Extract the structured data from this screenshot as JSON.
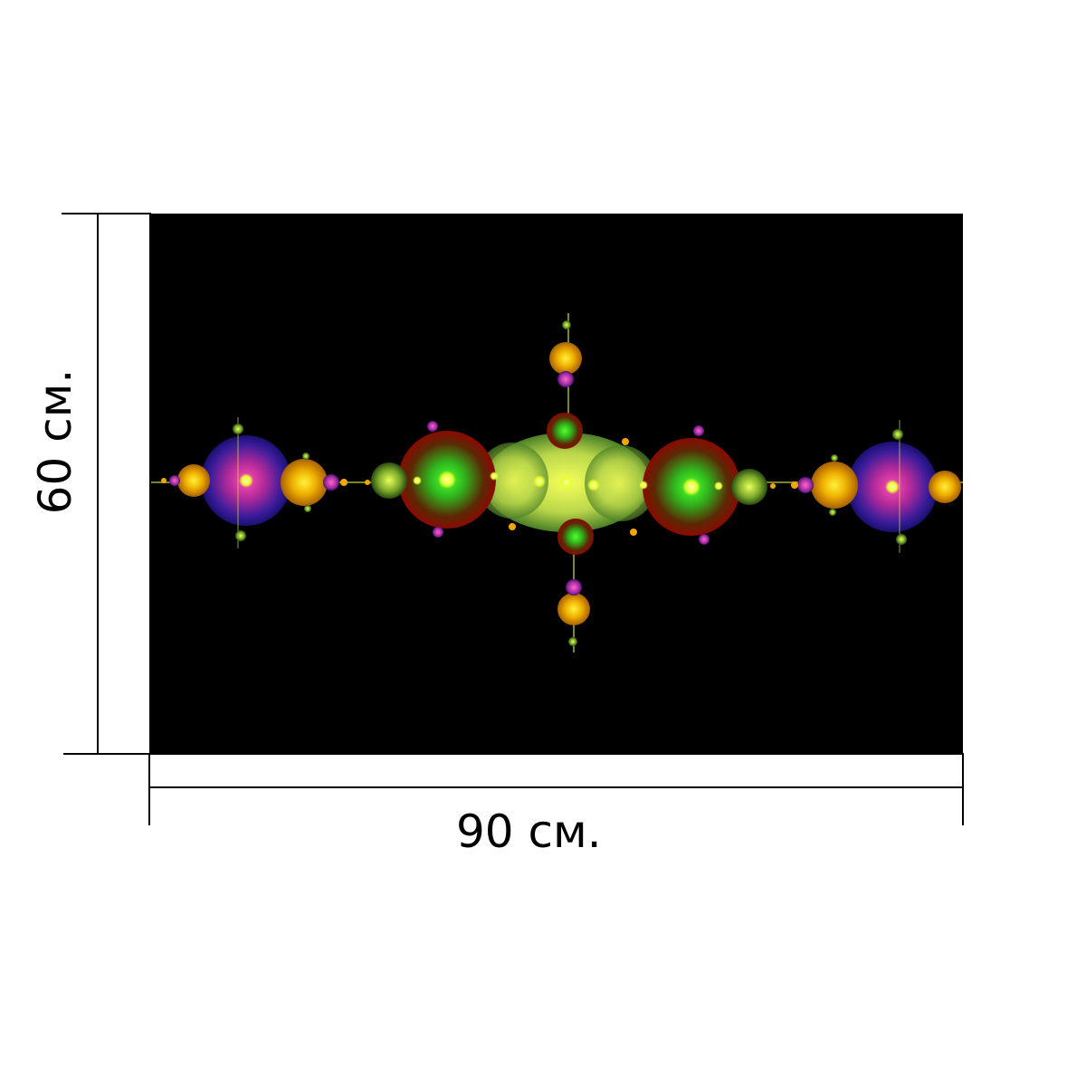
{
  "dimensions": {
    "width_label": "90 см.",
    "height_label": "60 см."
  },
  "artwork": {
    "subject": "fractal-ornament",
    "background_color": "#000000",
    "palette": {
      "yellow": "#f4ff3a",
      "green": "#33e020",
      "olive": "#8cb43a",
      "dark_red": "#7a0a00",
      "orange": "#e8a000",
      "magenta": "#e0309a",
      "indigo": "#2a1a9a"
    }
  }
}
